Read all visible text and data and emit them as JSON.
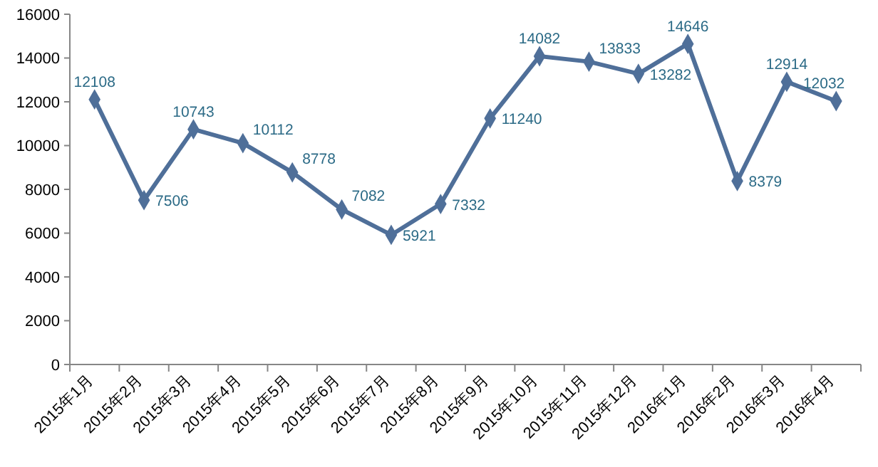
{
  "chart_data": {
    "type": "line",
    "categories": [
      "2015年1月",
      "2015年2月",
      "2015年3月",
      "2015年4月",
      "2015年5月",
      "2015年6月",
      "2015年7月",
      "2015年8月",
      "2015年9月",
      "2015年10月",
      "2015年11月",
      "2015年12月",
      "2016年1月",
      "2016年2月",
      "2016年3月",
      "2016年4月"
    ],
    "series": [
      {
        "color": "#4f6f99",
        "values": [
          12108,
          7506,
          10743,
          10112,
          8778,
          7082,
          5921,
          7332,
          11240,
          14082,
          13833,
          13282,
          14646,
          8379,
          12914,
          12032
        ]
      }
    ],
    "ylim": [
      0,
      16000
    ],
    "yticks": [
      0,
      2000,
      4000,
      6000,
      8000,
      10000,
      12000,
      14000,
      16000
    ],
    "grid": false,
    "marker": "diamond",
    "data_labels": true
  }
}
